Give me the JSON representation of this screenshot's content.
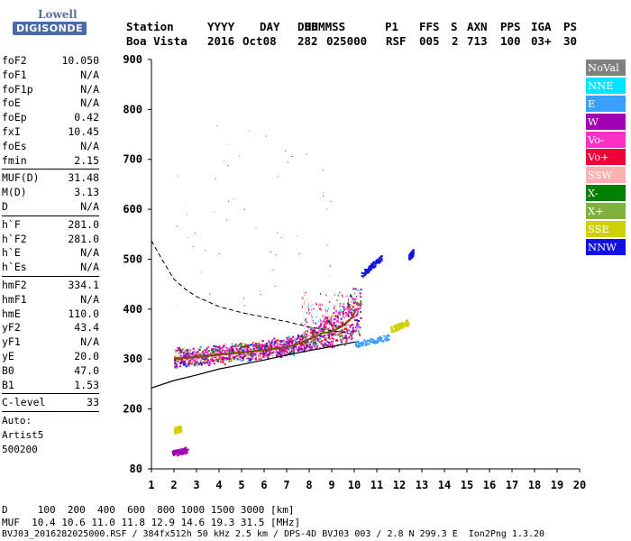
{
  "header": {
    "logo_top": "Lowell",
    "logo_bottom": "DIGISONDE",
    "labels": [
      "Station",
      "YYYY",
      "DAY",
      "DDD",
      "HHMMSS",
      "P1",
      "FFS",
      "S",
      "AXN",
      "PPS",
      "IGA",
      "PS"
    ],
    "values": [
      "Boa Vista",
      "2016",
      "Oct08",
      "282",
      "025000",
      "RSF",
      "005",
      "2",
      "713",
      "100",
      "03+",
      "30"
    ]
  },
  "params": [
    {
      "name": "foF2",
      "value": "10.050"
    },
    {
      "name": "foF1",
      "value": "N/A"
    },
    {
      "name": "foF1p",
      "value": "N/A"
    },
    {
      "name": "foE",
      "value": "N/A"
    },
    {
      "name": "foEp",
      "value": "0.42"
    },
    {
      "name": "fxI",
      "value": "10.45"
    },
    {
      "name": "foEs",
      "value": "N/A"
    },
    {
      "name": "fmin",
      "value": "2.15"
    },
    {
      "sep": true
    },
    {
      "name": "MUF(D)",
      "value": "31.48"
    },
    {
      "name": "M(D)",
      "value": "3.13"
    },
    {
      "name": "D",
      "value": "N/A"
    },
    {
      "sep": true
    },
    {
      "name": "h`F",
      "value": "281.0"
    },
    {
      "name": "h`F2",
      "value": "281.0"
    },
    {
      "name": "h`E",
      "value": "N/A"
    },
    {
      "name": "h`Es",
      "value": "N/A"
    },
    {
      "sep": true
    },
    {
      "name": "hmF2",
      "value": "334.1"
    },
    {
      "name": "hmF1",
      "value": "N/A"
    },
    {
      "name": "hmE",
      "value": "110.0"
    },
    {
      "name": "yF2",
      "value": "43.4"
    },
    {
      "name": "yF1",
      "value": "N/A"
    },
    {
      "name": "yE",
      "value": "20.0"
    },
    {
      "name": "B0",
      "value": "47.0"
    },
    {
      "name": "B1",
      "value": "1.53"
    },
    {
      "sep": true
    },
    {
      "name": "C-level",
      "value": "33"
    },
    {
      "sep": true
    }
  ],
  "notes": [
    "Auto:",
    "Artist5",
    "500200"
  ],
  "legend": [
    {
      "label": "NoVal",
      "color": "#808080"
    },
    {
      "label": "NNE",
      "color": "#00e5ff"
    },
    {
      "label": "E",
      "color": "#3aa0ff"
    },
    {
      "label": "W",
      "color": "#a000b0"
    },
    {
      "label": "Vo-",
      "color": "#ff30c8"
    },
    {
      "label": "Vo+",
      "color": "#f00038"
    },
    {
      "label": "SSW",
      "color": "#ffb0b0"
    },
    {
      "label": "X-",
      "color": "#008000"
    },
    {
      "label": "X+",
      "color": "#80b040"
    },
    {
      "label": "SSE",
      "color": "#d0d000"
    },
    {
      "label": "NNW",
      "color": "#1010e0"
    }
  ],
  "footer": {
    "line1": "D     100  200  400  600  800 1000 1500 3000 [km]",
    "line2": "MUF  10.4 10.6 11.0 11.8 12.9 14.6 19.3 31.5 [MHz]",
    "line3": "BVJ03_2016282025000.RSF / 384fx512h 50 kHz 2.5 km / DPS-4D BVJ03 003 / 2.8 N 299.3 E  Ion2Png 1.3.20"
  },
  "chart_data": {
    "type": "scatter",
    "xlim": [
      1,
      20
    ],
    "ylim": [
      80,
      900
    ],
    "x_ticks": [
      1,
      2,
      3,
      4,
      5,
      6,
      7,
      8,
      9,
      10,
      11,
      12,
      13,
      14,
      15,
      16,
      17,
      18,
      19,
      20
    ],
    "y_ticks": [
      80,
      200,
      300,
      400,
      500,
      600,
      700,
      800,
      900
    ],
    "x_tick_labels": [
      "1",
      "2",
      "3",
      "4",
      "5",
      "6",
      "7",
      "8",
      "9",
      "10",
      "11",
      "12",
      "13",
      "14",
      "15",
      "16",
      "17",
      "18",
      "19",
      "20"
    ],
    "y_tick_labels": [
      "80",
      "200",
      "300",
      "400",
      "500",
      "600",
      "700",
      "800",
      "900"
    ],
    "grid": false,
    "legend_position": "right",
    "ordinary_trace": {
      "x": [
        2.0,
        3.0,
        4.0,
        5.0,
        6.0,
        7.0,
        7.5,
        8.0,
        8.3,
        8.6,
        9.0,
        9.4,
        9.8,
        10.05
      ],
      "y": [
        300,
        304,
        309,
        313,
        318,
        324,
        330,
        340,
        345,
        352,
        355,
        364,
        378,
        395
      ]
    },
    "virtual_height_profile": {
      "x": [
        1.0,
        1.5,
        2.0,
        2.5,
        3.0,
        4.0,
        5.0,
        6.0,
        7.0,
        8.0,
        9.0,
        10.0,
        10.05
      ],
      "y": [
        537,
        497,
        460,
        440,
        425,
        405,
        393,
        384,
        375,
        364,
        357,
        350,
        350
      ]
    },
    "true_height_profile": {
      "x": [
        1.0,
        2.0,
        3.0,
        4.0,
        5.0,
        6.0,
        7.0,
        8.0,
        9.0,
        10.0,
        10.05
      ],
      "y": [
        242,
        257,
        268,
        280,
        289,
        298,
        308,
        317,
        325,
        334,
        334
      ]
    },
    "echo_clusters": [
      {
        "legend": "NNW",
        "x": [
          10.3,
          11.2
        ],
        "y": [
          470,
          505
        ]
      },
      {
        "legend": "NNW",
        "x": [
          12.4,
          12.6
        ],
        "y": [
          505,
          515
        ]
      },
      {
        "legend": "E",
        "x": [
          10.0,
          11.5
        ],
        "y": [
          330,
          345
        ]
      },
      {
        "legend": "SSE",
        "x": [
          11.6,
          12.4
        ],
        "y": [
          360,
          375
        ]
      },
      {
        "legend": "W",
        "x": [
          1.9,
          2.6
        ],
        "y": [
          112,
          120
        ]
      },
      {
        "legend": "SSE",
        "x": [
          2.0,
          2.3
        ],
        "y": [
          158,
          162
        ]
      }
    ]
  }
}
